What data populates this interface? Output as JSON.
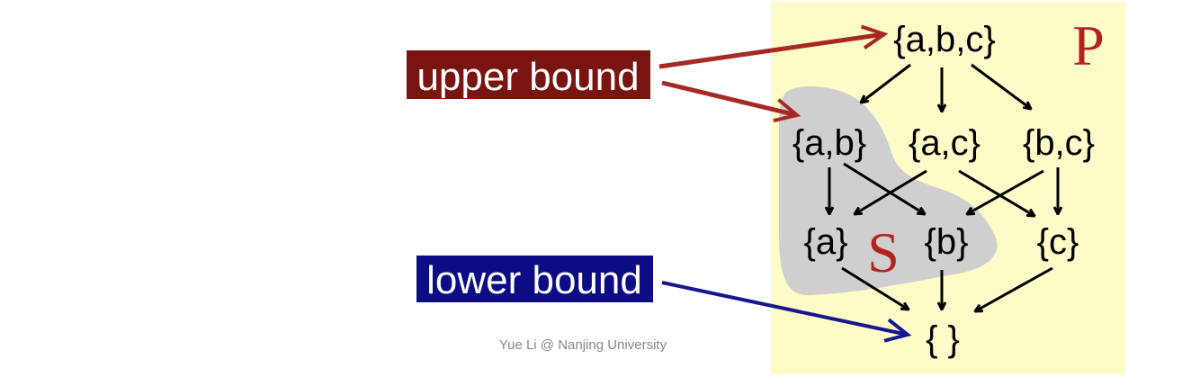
{
  "poset": {
    "label": "P",
    "nodes": {
      "abc": "{a,b,c}",
      "ab": "{a,b}",
      "ac": "{a,c}",
      "bc": "{b,c}",
      "a": "{a}",
      "b": "{b}",
      "c": "{c}",
      "empty": "{ }"
    }
  },
  "subset": {
    "label": "S"
  },
  "labels": {
    "upper_bound": "upper bound",
    "lower_bound": "lower bound"
  },
  "footer": {
    "credit": "Yue Li @ Nanjing University"
  },
  "colors": {
    "poset_bg": "#fdfbc8",
    "subset_fill": "#cfcfcf",
    "upper_label_bg": "#7a1410",
    "upper_arrow": "#a82824",
    "lower_label_bg": "#0c0c84",
    "lower_arrow": "#16168e",
    "set_letter": "#b3231c"
  }
}
